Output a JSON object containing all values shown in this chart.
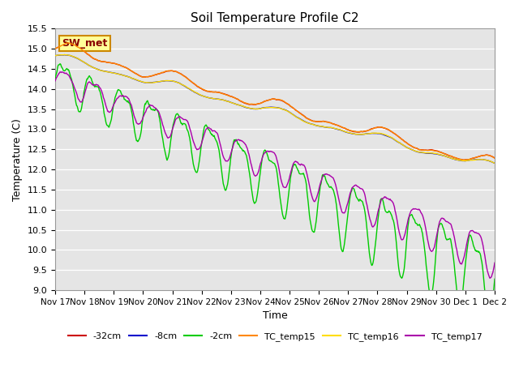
{
  "title": "Soil Temperature Profile C2",
  "xlabel": "Time",
  "ylabel": "Temperature (C)",
  "ylim": [
    9.0,
    15.5
  ],
  "xlim": [
    0,
    15
  ],
  "plot_bg": "#e5e5e5",
  "series": {
    "-32cm": {
      "color": "#cc0000",
      "linewidth": 1.0
    },
    "-8cm": {
      "color": "#0000cc",
      "linewidth": 1.0
    },
    "-2cm": {
      "color": "#00cc00",
      "linewidth": 1.0
    },
    "TC_temp15": {
      "color": "#ff8800",
      "linewidth": 1.0
    },
    "TC_temp16": {
      "color": "#ffdd00",
      "linewidth": 1.0
    },
    "TC_temp17": {
      "color": "#aa00aa",
      "linewidth": 1.0
    }
  },
  "xtick_labels": [
    "Nov 17",
    "Nov 18",
    "Nov 19",
    "Nov 20",
    "Nov 21",
    "Nov 22",
    "Nov 23",
    "Nov 24",
    "Nov 25",
    "Nov 26",
    "Nov 27",
    "Nov 28",
    "Nov 29",
    "Nov 30",
    "Dec 1",
    "Dec 2"
  ],
  "annotation_text": "SW_met",
  "annotation_bg": "#ffff99",
  "annotation_border": "#cc8800",
  "annotation_text_color": "#880000",
  "yticks": [
    9.0,
    9.5,
    10.0,
    10.5,
    11.0,
    11.5,
    12.0,
    12.5,
    13.0,
    13.5,
    14.0,
    14.5,
    15.0,
    15.5
  ]
}
